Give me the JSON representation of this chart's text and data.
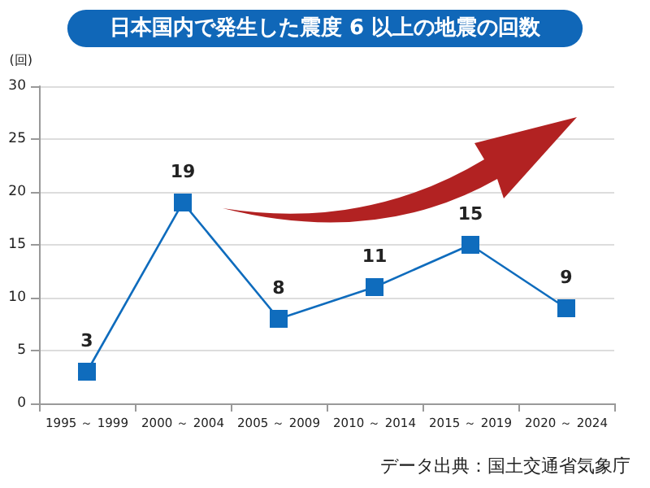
{
  "chart_data": {
    "type": "line",
    "title": "日本国内で発生した震度 6 以上の地震の回数",
    "ylabel": "(回)",
    "categories": [
      "1995 ～ 1999",
      "2000 ～ 2004",
      "2005 ～ 2009",
      "2010 ～ 2014",
      "2015 ～ 2019",
      "2020 ～ 2024"
    ],
    "series": [
      {
        "color": "#0f6cbd",
        "values": [
          3,
          19,
          8,
          11,
          15,
          9
        ]
      }
    ],
    "ylim": [
      0,
      30
    ],
    "yticks": [
      0,
      5,
      10,
      15,
      20,
      25,
      30
    ],
    "grid": "y",
    "marker": "square",
    "line_style": "solid",
    "data_labels": true,
    "annotations": [
      "データ出典：国土交通省気象庁"
    ]
  }
}
